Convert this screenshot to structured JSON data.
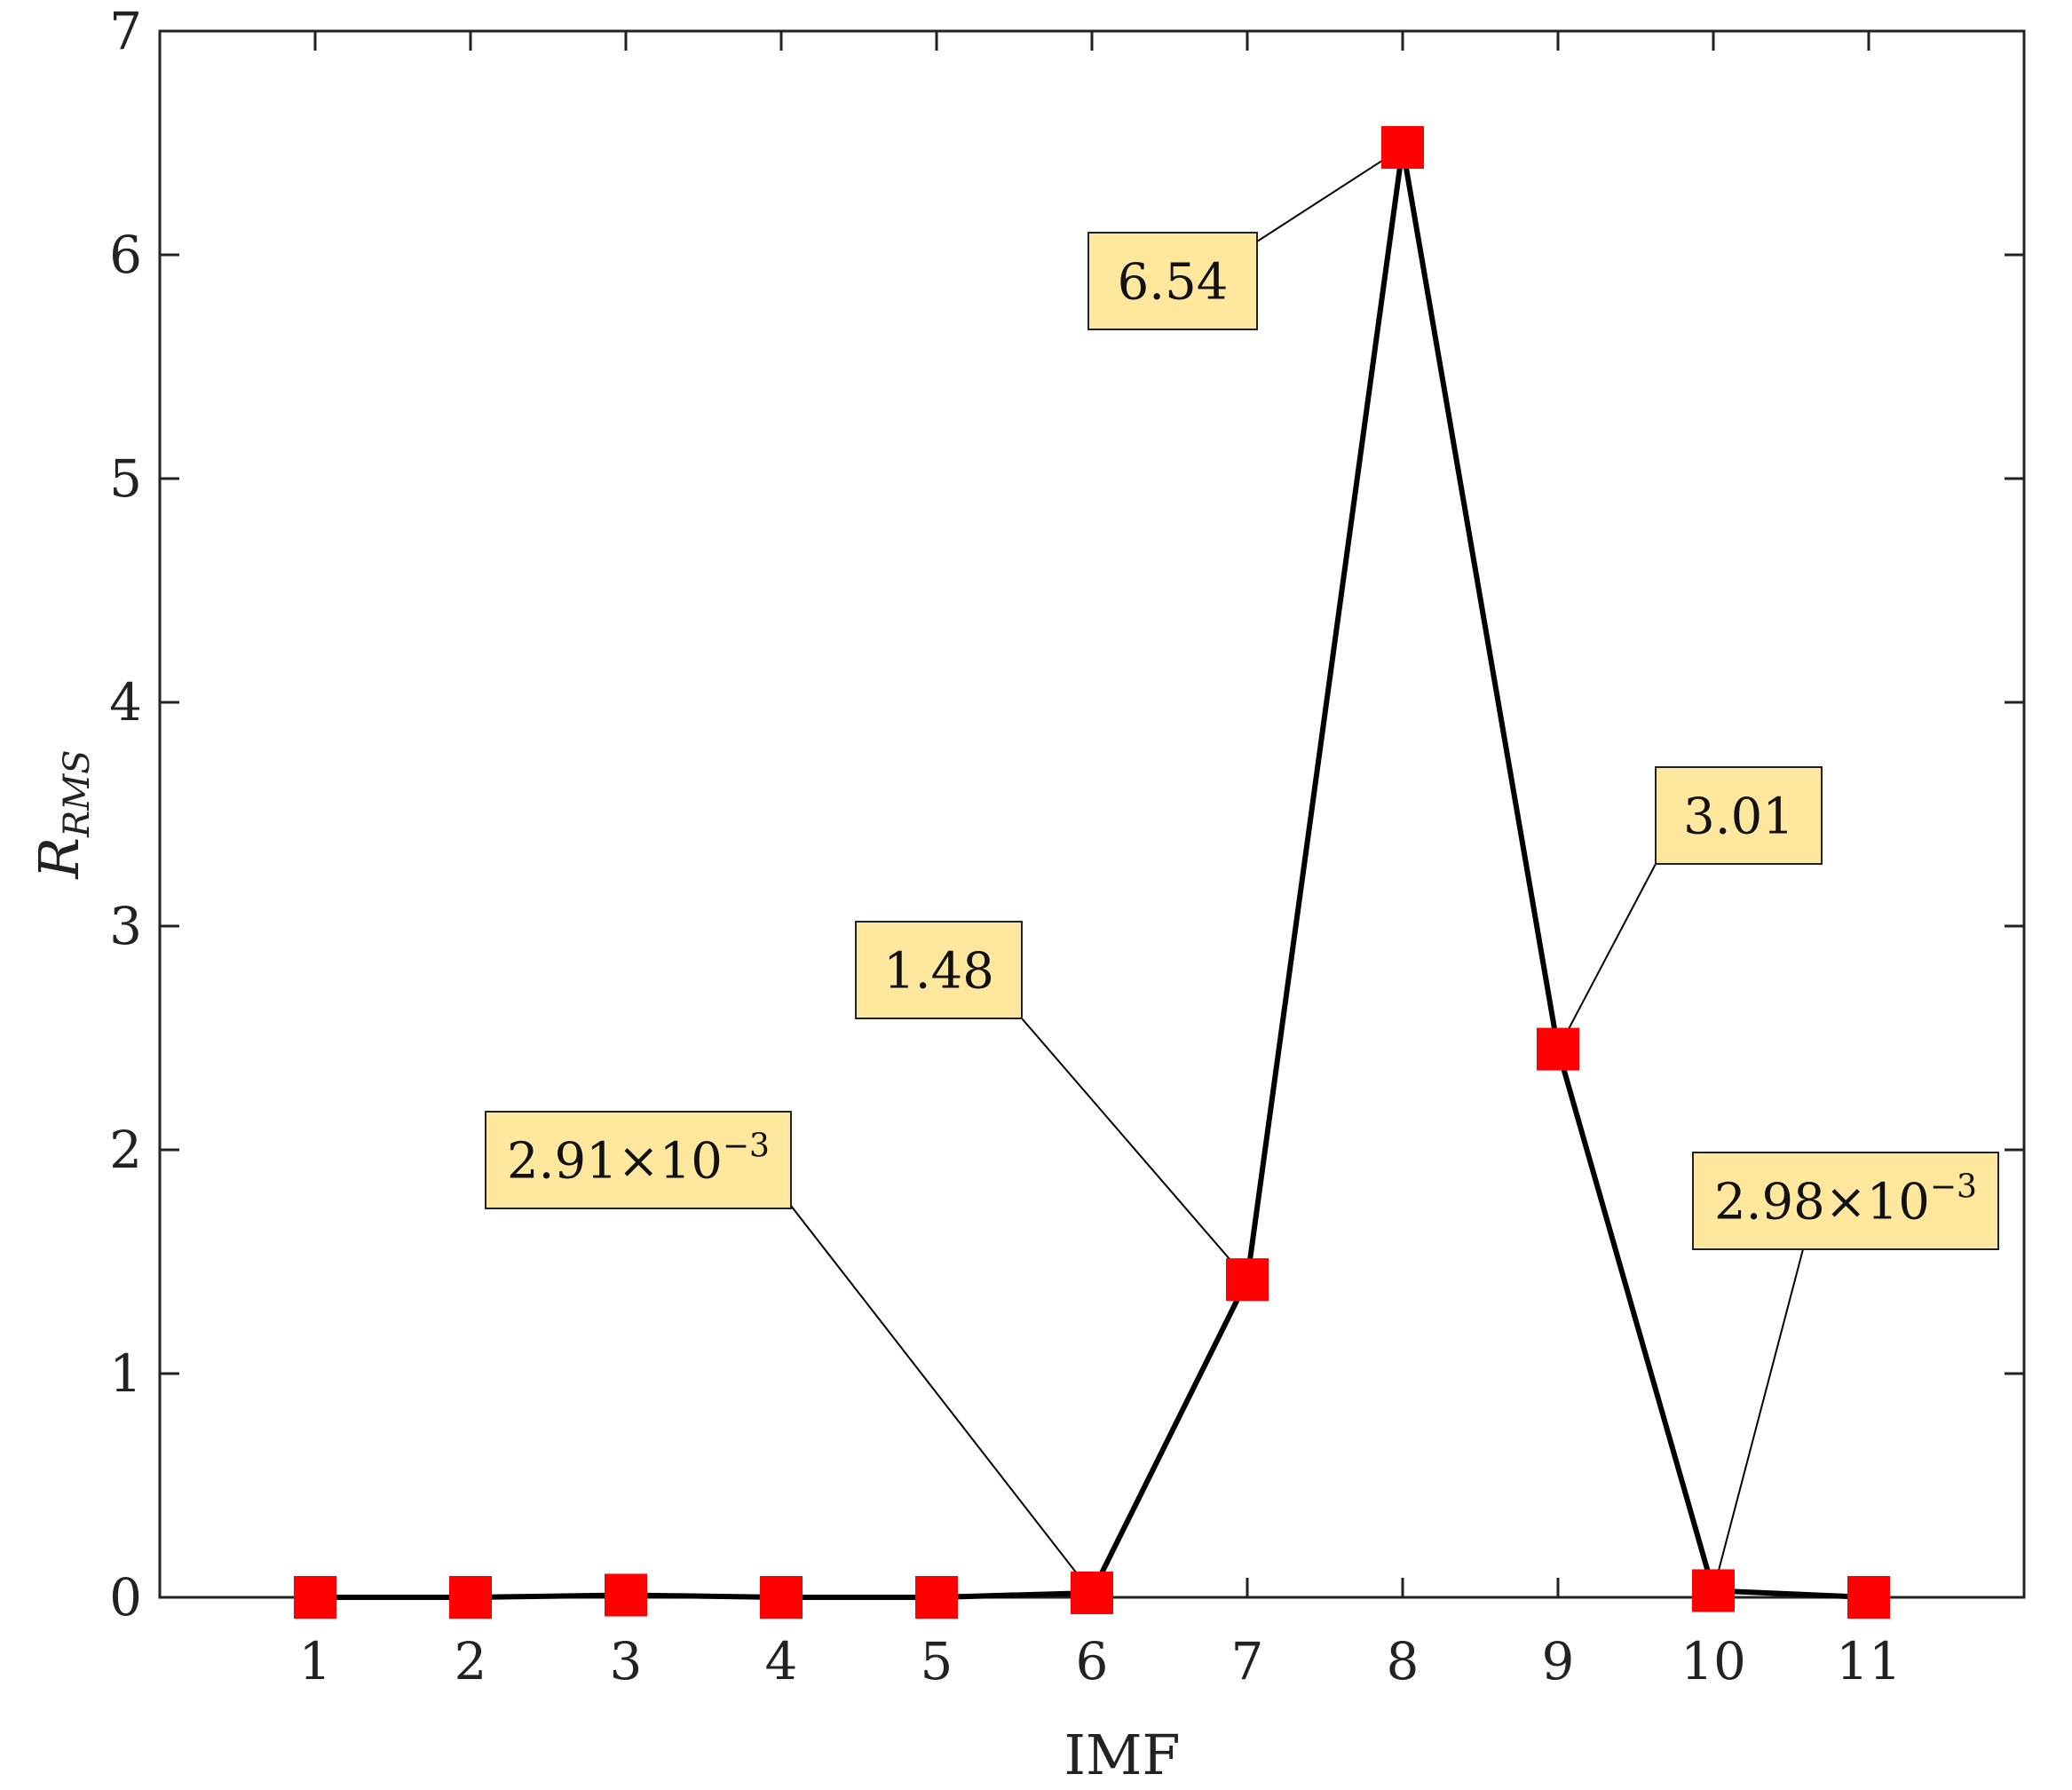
{
  "chart_data": {
    "type": "line",
    "title": "",
    "xlabel": "IMF",
    "ylabel_main": "R",
    "ylabel_sub": "RMS",
    "x": [
      1,
      2,
      3,
      4,
      5,
      6,
      7,
      8,
      9,
      10,
      11
    ],
    "x_tick_labels": [
      "1",
      "2",
      "3",
      "4",
      "5",
      "6",
      "7",
      "8",
      "9",
      "10",
      "11"
    ],
    "xlim": [
      0,
      12
    ],
    "ylim": [
      0,
      7
    ],
    "y_ticks": [
      0,
      1,
      2,
      3,
      4,
      5,
      6,
      7
    ],
    "y_tick_labels": [
      "0",
      "1",
      "2",
      "3",
      "4",
      "5",
      "6",
      "7"
    ],
    "grid": false,
    "legend": "none",
    "series": [
      {
        "values": [
          0.0,
          0.0,
          0.01,
          0.0,
          0.0,
          0.02,
          1.42,
          6.48,
          2.45,
          0.03,
          0.0
        ],
        "line_color": "#000000",
        "marker": "square",
        "marker_color": "#ff0000"
      }
    ],
    "annotations": [
      {
        "point_index": 5,
        "main": "2.91×10",
        "sup": "−3"
      },
      {
        "point_index": 6,
        "main": "1.48",
        "sup": ""
      },
      {
        "point_index": 7,
        "main": "6.54",
        "sup": ""
      },
      {
        "point_index": 8,
        "main": "3.01",
        "sup": ""
      },
      {
        "point_index": 9,
        "main": "2.98×10",
        "sup": "−3"
      }
    ],
    "annotation_box_color": "#ffe79e"
  }
}
